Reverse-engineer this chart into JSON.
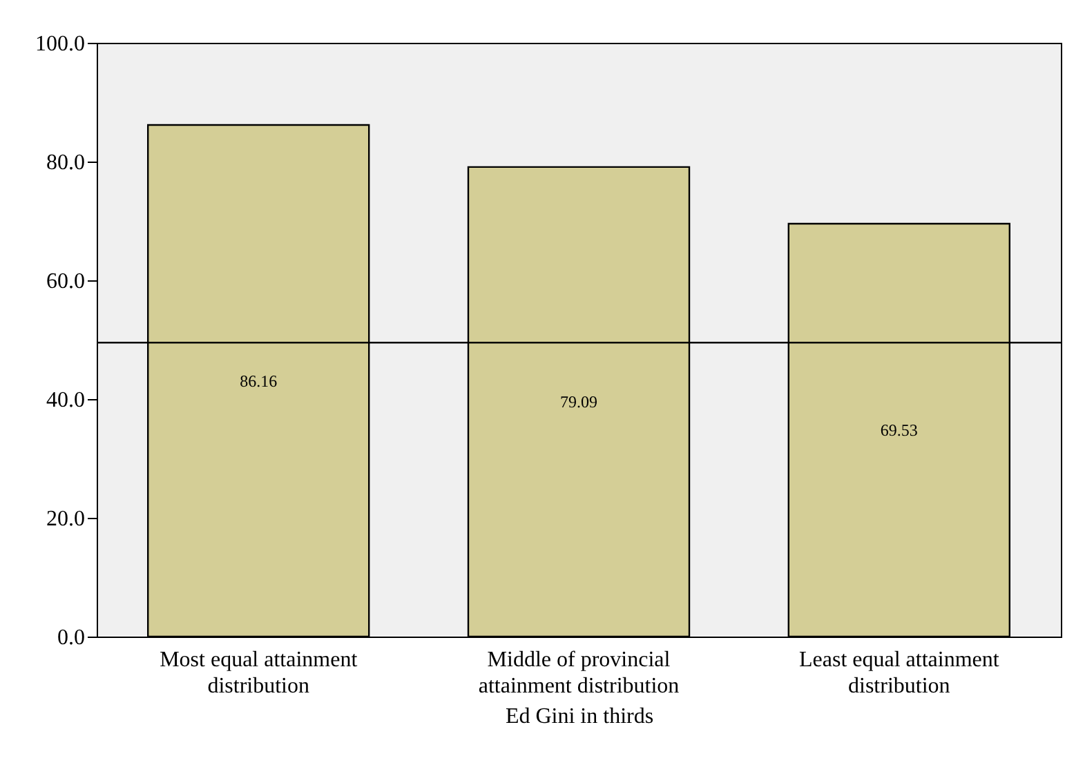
{
  "chart_data": {
    "type": "bar",
    "xlabel": "Ed Gini in thirds",
    "categories": [
      "Most equal attainment distribution",
      "Middle of provincial attainment distribution",
      "Least equal attainment distribution"
    ],
    "values": [
      86.16,
      79.09,
      69.53
    ],
    "color": "#d4ce96",
    "data_labels": true,
    "ylim": [
      0,
      100
    ],
    "yticks": [
      {
        "value": 0,
        "label": "0.0"
      },
      {
        "value": 20,
        "label": "20.0"
      },
      {
        "value": 40,
        "label": "40.0"
      },
      {
        "value": 60,
        "label": "60.0"
      },
      {
        "value": 80,
        "label": "80.0"
      },
      {
        "value": 100,
        "label": "100.0"
      }
    ],
    "ref_lines": [
      {
        "axis": "y",
        "value": 49.5
      }
    ],
    "grid": false
  }
}
